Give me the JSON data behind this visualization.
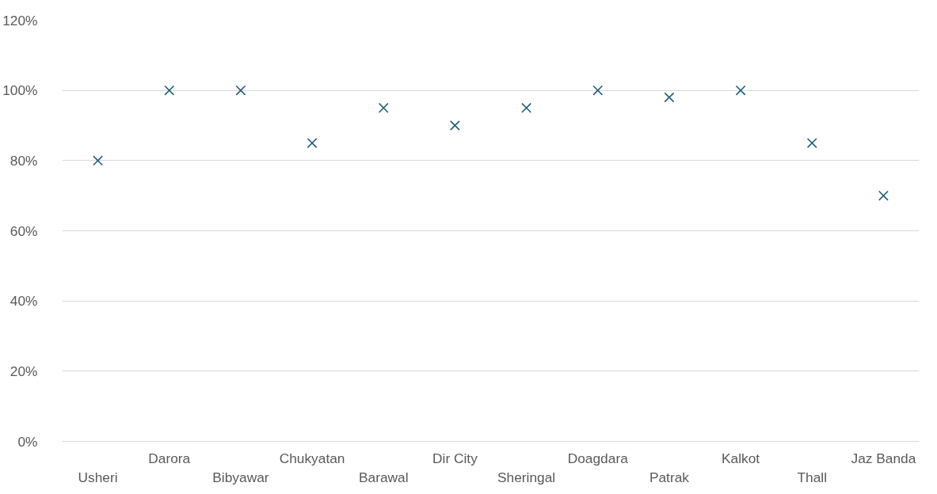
{
  "chart_data": {
    "type": "scatter",
    "categories": [
      "Usheri",
      "Darora",
      "Bibyawar",
      "Chukyatan",
      "Barawal",
      "Dir City",
      "Sheringal",
      "Doagdara",
      "Patrak",
      "Kalkot",
      "Thall",
      "Jaz Banda"
    ],
    "series": [
      {
        "color": "#215f7a",
        "values": [
          80,
          100,
          100,
          85,
          95,
          90,
          95,
          100,
          98,
          100,
          85,
          70
        ]
      }
    ],
    "ylim": [
      0,
      120
    ],
    "yticks": [
      {
        "value": 0,
        "label": "0%"
      },
      {
        "value": 20,
        "label": "20%"
      },
      {
        "value": 40,
        "label": "40%"
      },
      {
        "value": 60,
        "label": "60%"
      },
      {
        "value": 80,
        "label": "80%"
      },
      {
        "value": 100,
        "label": "100%"
      },
      {
        "value": 120,
        "label": "120%"
      }
    ],
    "grid": "y",
    "marker": "cross"
  }
}
